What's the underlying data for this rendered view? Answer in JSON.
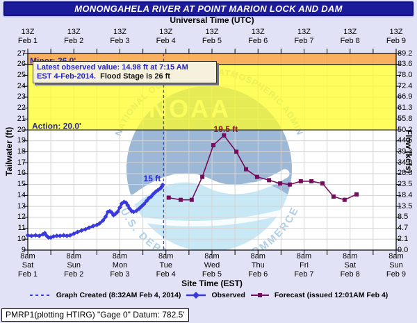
{
  "title": "MONONGAHELA RIVER AT POINT MARION LOCK AND DAM",
  "top_axis": {
    "title": "Universal Time (UTC)",
    "tick_label": "13Z",
    "dates": [
      "Feb 1",
      "Feb 2",
      "Feb 3",
      "Feb 4",
      "Feb 5",
      "Feb 6",
      "Feb 7",
      "Feb 8",
      "Feb 9"
    ]
  },
  "bottom_axis": {
    "title": "Site Time (EST)",
    "tick_label": "8am",
    "days": [
      "Sat",
      "Sun",
      "Mon",
      "Tue",
      "Wed",
      "Thu",
      "Fri",
      "Sat",
      "Sun"
    ],
    "dates": [
      "Feb 1",
      "Feb 2",
      "Feb 3",
      "Feb 4",
      "Feb 5",
      "Feb 6",
      "Feb 7",
      "Feb 8",
      "Feb 9"
    ]
  },
  "left_axis": {
    "title": "Tailwater (ft)",
    "ticks": [
      "27",
      "26",
      "25",
      "24",
      "23",
      "22",
      "21",
      "20",
      "19",
      "18",
      "17",
      "16",
      "15",
      "14",
      "13",
      "12",
      "11",
      "10",
      "9"
    ]
  },
  "right_axis": {
    "title": "Flow (kcfs)",
    "ticks": [
      "89.2",
      "83.6",
      "78.0",
      "72.4",
      "66.9",
      "61.3",
      "55.8",
      "50.2",
      "44.6",
      "39.3",
      "34.0",
      "28.8",
      "23.5",
      "18.4",
      "13.5",
      "8.5",
      "4.7",
      "2.1",
      "0.0"
    ]
  },
  "info_box": {
    "line1": "Latest observed value: 14.98 ft at 7:15 AM",
    "line2_blue": "EST 4-Feb-2014.",
    "line2_black": "Flood Stage is 26 ft"
  },
  "legend": {
    "created": "Graph Created (8:32AM Feb 4, 2014)",
    "observed": "Observed",
    "forecast": "Forecast (issued 12:01AM Feb 4)"
  },
  "footer": "PMRP1(plotting HTIRG) \"Gage 0\" Datum: 782.5'",
  "logo": {
    "name": "NOAA",
    "arc_top": "NATIONAL OCEANIC AND ATMOSPHERIC ADMINISTRATION",
    "arc_bottom": "U.S. DEPARTMENT OF COMMERCE"
  },
  "colors": {
    "page_bg": "#e2e2f6",
    "title_bg": "#1b1b9b",
    "observed": "#3a3adc",
    "forecast": "#750d5e",
    "created_line": "#3d3dee",
    "yellow_band": "rgba(252,252,40,0.75)",
    "orange_band": "rgba(247,157,55,0.8)",
    "grid": "#d3d3d3",
    "band_label": "#2b2b85",
    "peak_label": "#8b1a1a",
    "obs_label": "#2b2bd6",
    "logo_circle": "#c8e8f6",
    "logo_dark": "#9cb8d6",
    "logo_arc_text": "#aec6de"
  },
  "chart_data": {
    "type": "line",
    "title": "MONONGAHELA RIVER AT POINT MARION LOCK AND DAM",
    "xlabel_top": "Universal Time (UTC)",
    "xlabel_bottom": "Site Time (EST)",
    "ylabel_left": "Tailwater (ft)",
    "ylabel_right": "Flow (kcfs)",
    "x_unit": "days since Feb 1 8:00 AM EST",
    "x_range": [
      0,
      8
    ],
    "y_left_range": [
      9,
      27
    ],
    "grid_x_step_days": 0.5,
    "grid_y_step_ft": 1,
    "action_stage_ft": 20,
    "flood_stage_ft": 26,
    "latest_observed": {
      "value_ft": 14.98,
      "time": "7:15 AM EST 4-Feb-2014"
    },
    "graph_created_day": 2.95,
    "bands": [
      {
        "name": "action",
        "label": "Action: 20.0'",
        "from_ft": 20,
        "to_ft": 26
      },
      {
        "name": "minor",
        "label": "Minor: 26.0'",
        "from_ft": 26,
        "to_ft": 27
      }
    ],
    "series": [
      {
        "name": "Observed",
        "marker": "diamond",
        "points": [
          [
            0,
            10.35
          ],
          [
            0.08,
            10.3
          ],
          [
            0.17,
            10.35
          ],
          [
            0.25,
            10.3
          ],
          [
            0.33,
            10.45
          ],
          [
            0.37,
            10.55
          ],
          [
            0.41,
            10.3
          ],
          [
            0.45,
            10.15
          ],
          [
            0.5,
            10.15
          ],
          [
            0.56,
            10.25
          ],
          [
            0.63,
            10.3
          ],
          [
            0.7,
            10.3
          ],
          [
            0.78,
            10.35
          ],
          [
            0.85,
            10.3
          ],
          [
            0.92,
            10.35
          ],
          [
            1,
            10.5
          ],
          [
            1.08,
            10.65
          ],
          [
            1.17,
            10.8
          ],
          [
            1.25,
            10.9
          ],
          [
            1.33,
            11.05
          ],
          [
            1.42,
            11.2
          ],
          [
            1.5,
            11.3
          ],
          [
            1.56,
            11.45
          ],
          [
            1.63,
            11.7
          ],
          [
            1.69,
            12.05
          ],
          [
            1.74,
            12.5
          ],
          [
            1.78,
            12.55
          ],
          [
            1.82,
            12.45
          ],
          [
            1.86,
            12.2
          ],
          [
            1.9,
            12.3
          ],
          [
            1.95,
            12.5
          ],
          [
            2,
            12.9
          ],
          [
            2.04,
            13.25
          ],
          [
            2.09,
            13.4
          ],
          [
            2.13,
            13.35
          ],
          [
            2.17,
            13.1
          ],
          [
            2.21,
            12.8
          ],
          [
            2.26,
            12.55
          ],
          [
            2.3,
            12.5
          ],
          [
            2.36,
            12.6
          ],
          [
            2.42,
            12.8
          ],
          [
            2.47,
            13
          ],
          [
            2.52,
            13.2
          ],
          [
            2.58,
            13.5
          ],
          [
            2.63,
            13.75
          ],
          [
            2.68,
            13.9
          ],
          [
            2.73,
            14.15
          ],
          [
            2.78,
            14.35
          ],
          [
            2.83,
            14.5
          ],
          [
            2.88,
            14.65
          ],
          [
            2.91,
            14.8
          ],
          [
            2.93,
            14.98
          ]
        ]
      },
      {
        "name": "Forecast",
        "marker": "square",
        "points": [
          [
            3.06,
            13.8
          ],
          [
            3.32,
            13.6
          ],
          [
            3.56,
            13.6
          ],
          [
            3.79,
            15.7
          ],
          [
            4.03,
            18.6
          ],
          [
            4.26,
            19.5
          ],
          [
            4.53,
            18
          ],
          [
            4.74,
            16.4
          ],
          [
            4.98,
            15.7
          ],
          [
            5.24,
            15.4
          ],
          [
            5.48,
            15.1
          ],
          [
            5.69,
            15
          ],
          [
            5.93,
            15.3
          ],
          [
            6.16,
            15.3
          ],
          [
            6.4,
            15.1
          ],
          [
            6.64,
            13.9
          ],
          [
            6.88,
            13.6
          ],
          [
            7.14,
            14.1
          ]
        ]
      }
    ],
    "annotations": [
      {
        "name": "observed-end-label",
        "text": "15 ft",
        "x_day": 2.7,
        "y_ft": 15.3,
        "color_key": "obs_label"
      },
      {
        "name": "forecast-peak-label",
        "text": "19.5 ft",
        "x_day": 4.3,
        "y_ft": 19.8,
        "color_key": "peak_label"
      }
    ],
    "legend_position": "bottom"
  }
}
